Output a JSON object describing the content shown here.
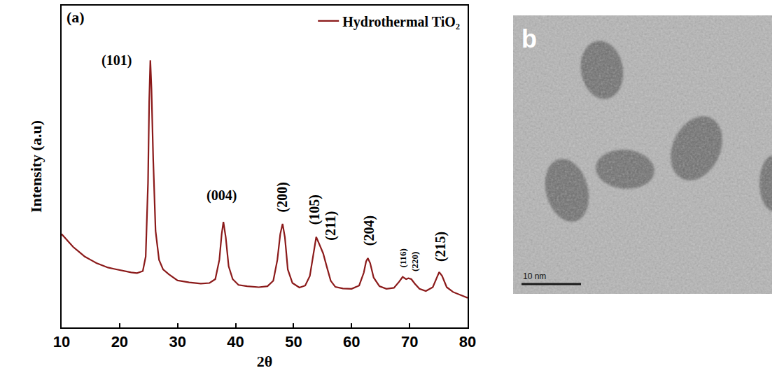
{
  "chart_data": {
    "type": "line",
    "panel_label": "(a)",
    "x_label": "2θ",
    "y_label": "Intensity (a.u)",
    "xlim": [
      10,
      80
    ],
    "xticks": [
      10,
      20,
      30,
      40,
      50,
      60,
      70,
      80
    ],
    "ylim": [
      0,
      100
    ],
    "tick_labels": "x",
    "grid": false,
    "legend": "top right",
    "series": [
      {
        "name": "Hydrothermal TiO₂",
        "color": "#8b1a1a",
        "x": [
          10,
          11,
          12,
          13,
          14,
          15,
          16,
          17,
          18,
          19,
          20,
          21,
          22,
          23,
          24,
          24.5,
          24.9,
          25.1,
          25.3,
          25.5,
          25.8,
          26.2,
          26.8,
          27.5,
          28.5,
          30,
          32,
          34,
          35.5,
          36.5,
          37.2,
          37.6,
          37.9,
          38.3,
          38.8,
          39.5,
          40.5,
          42,
          44,
          45.5,
          46.5,
          47.2,
          47.7,
          48.1,
          48.5,
          49,
          49.8,
          51,
          52,
          52.8,
          53.4,
          53.9,
          54.4,
          55.1,
          55.7,
          56.4,
          57.2,
          58.5,
          60,
          61.3,
          62.1,
          62.5,
          62.8,
          63.2,
          63.8,
          64.8,
          66,
          67.3,
          68.2,
          68.8,
          69.4,
          69.8,
          70.3,
          70.9,
          71.7,
          72.8,
          74,
          74.6,
          75.1,
          75.6,
          76.4,
          77.5,
          79,
          80
        ],
        "values": [
          29,
          27,
          25,
          23.5,
          22,
          21,
          20,
          19.3,
          18.6,
          18.2,
          17.8,
          17.4,
          17.1,
          16.9,
          17.5,
          22,
          45,
          70,
          83,
          74,
          52,
          30,
          21,
          18,
          16.5,
          14.6,
          14,
          13.6,
          13.8,
          15,
          21,
          29,
          32.8,
          28,
          19,
          15,
          13.2,
          12.8,
          12.5,
          12.8,
          14.5,
          21,
          29,
          32.2,
          28,
          18,
          13.8,
          12.4,
          13,
          16,
          23,
          28.1,
          26,
          23,
          19,
          14.5,
          12.6,
          12.1,
          12,
          13,
          17,
          20.5,
          21.5,
          20,
          15.5,
          12.8,
          12,
          12.3,
          14.2,
          15.7,
          15,
          15.3,
          15,
          13.6,
          12,
          11.3,
          12.5,
          15,
          17.2,
          16,
          12.5,
          11,
          10,
          9.2
        ]
      }
    ],
    "annotations": [
      {
        "text": "(101)",
        "x": 19.5,
        "y": 80
      },
      {
        "text": "(004)",
        "x": 37.6,
        "y": 38
      },
      {
        "text": "(200)",
        "x": 48.1,
        "y": 40.5
      },
      {
        "text": "(105)",
        "x": 53.6,
        "y": 36.5
      },
      {
        "text": "(211)",
        "x": 56.3,
        "y": 31.5
      },
      {
        "text": "(204)",
        "x": 63,
        "y": 30
      },
      {
        "text": "(116)",
        "x": 68.9,
        "y": 21.4
      },
      {
        "text": "(220)",
        "x": 70.8,
        "y": 20.4
      },
      {
        "text": "(215)",
        "x": 75.3,
        "y": 25
      }
    ]
  },
  "image_panel": {
    "label": "b",
    "scale_bar": "10 nm"
  }
}
